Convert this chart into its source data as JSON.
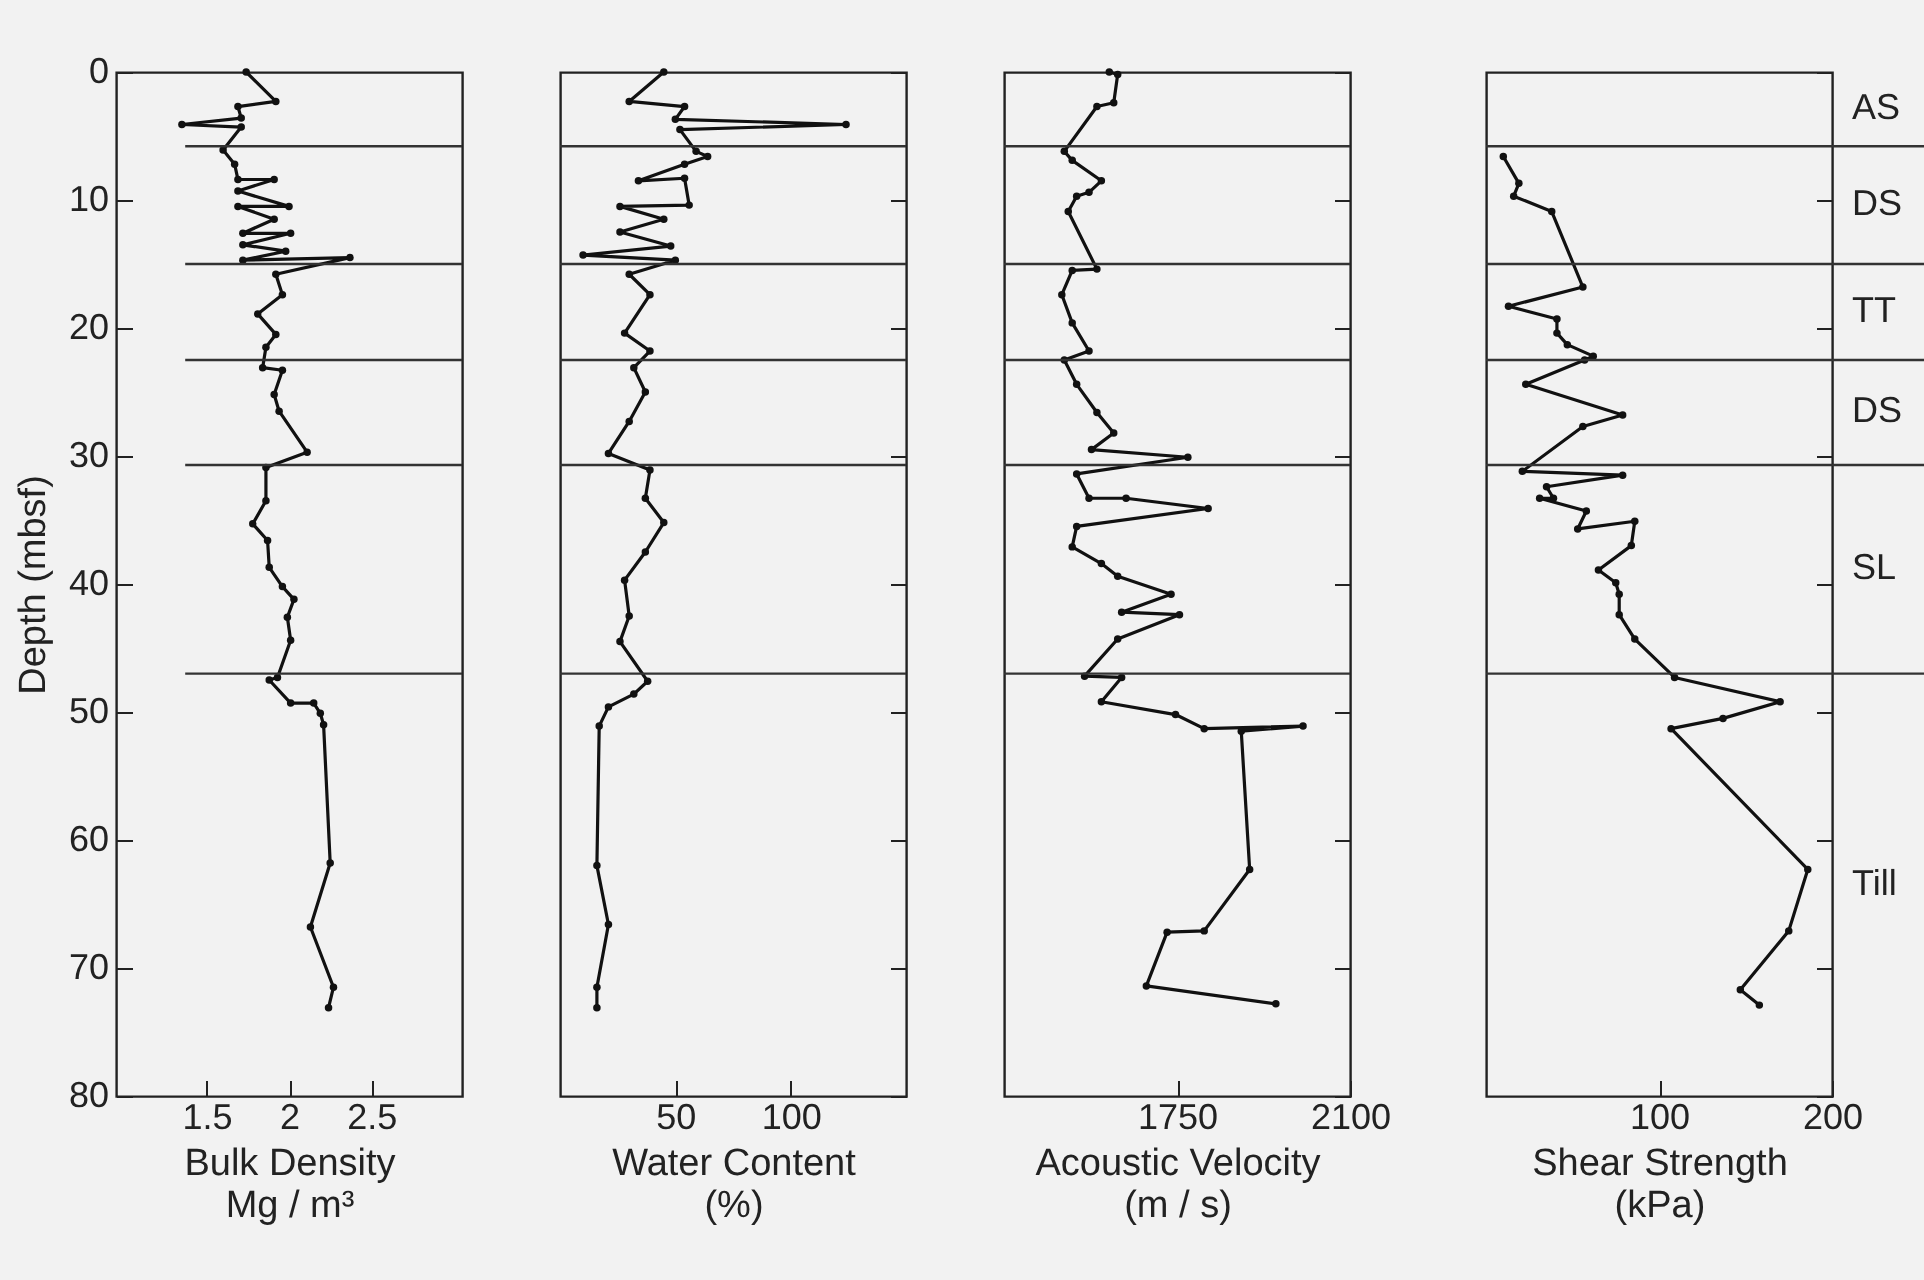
{
  "chart_data": [
    {
      "type": "line",
      "xlabel": "Bulk Density\nMg / m³",
      "ylabel": "Depth (mbsf)",
      "xlim": [
        0.95,
        3.05
      ],
      "xticks": [
        1.5,
        2,
        2.5
      ],
      "ylim": [
        80,
        0
      ],
      "yticks": [
        0,
        10,
        20,
        30,
        40,
        50,
        60,
        70,
        80
      ],
      "marker": "circle",
      "series": [
        {
          "color": "#111111",
          "x": [
            1.74,
            1.92,
            1.69,
            1.71,
            1.35,
            1.71,
            1.6,
            1.67,
            1.69,
            1.91,
            1.69,
            2.0,
            1.69,
            1.91,
            1.72,
            2.01,
            1.72,
            1.98,
            1.72,
            2.37,
            1.92,
            1.96,
            1.81,
            1.92,
            1.86,
            1.84,
            1.96,
            1.91,
            1.94,
            2.11,
            1.86,
            1.86,
            1.78,
            1.87,
            1.88,
            1.96,
            2.03,
            1.99,
            2.01,
            1.93,
            1.88,
            2.01,
            2.15,
            2.19,
            2.21,
            2.25,
            2.13,
            2.27,
            2.24
          ],
          "values": [
            0,
            2.3,
            2.7,
            3.6,
            4.1,
            4.3,
            6.1,
            7.2,
            8.4,
            8.4,
            9.3,
            10.5,
            10.5,
            11.5,
            12.6,
            12.6,
            13.5,
            14.0,
            14.7,
            14.5,
            15.8,
            17.4,
            18.9,
            20.5,
            21.5,
            23.1,
            23.3,
            25.2,
            26.5,
            29.7,
            30.9,
            33.5,
            35.3,
            36.6,
            38.7,
            40.2,
            41.2,
            42.6,
            44.4,
            47.3,
            47.5,
            49.3,
            49.3,
            50.1,
            51.0,
            61.8,
            66.8,
            71.5,
            73.1
          ]
        }
      ],
      "ref_lines": [
        {
          "axis": "y",
          "value": 5.8
        },
        {
          "axis": "y",
          "value": 15
        },
        {
          "axis": "y",
          "value": 22.5
        },
        {
          "axis": "y",
          "value": 30.7
        },
        {
          "axis": "y",
          "value": 47
        }
      ]
    },
    {
      "type": "line",
      "xlabel": "Water Content\n(%)",
      "xlim": [
        0,
        150
      ],
      "xticks": [
        50,
        100
      ],
      "ylim": [
        80,
        0
      ],
      "yticks": [
        0,
        10,
        20,
        30,
        40,
        50,
        60,
        70,
        80
      ],
      "tick_labels": "x",
      "marker": "circle",
      "series": [
        {
          "color": "#111111",
          "x": [
            45,
            30,
            54,
            50,
            124,
            52,
            59,
            64,
            54,
            34,
            54,
            56,
            26,
            45,
            26,
            48,
            10,
            50,
            30,
            39,
            28,
            39,
            32,
            37,
            30,
            21,
            39,
            37,
            45,
            37,
            28,
            30,
            26,
            38,
            32,
            21,
            17,
            16,
            21,
            16,
            16
          ],
          "values": [
            0,
            2.3,
            2.7,
            3.7,
            4.1,
            4.5,
            6.2,
            6.6,
            7.2,
            8.5,
            8.3,
            10.4,
            10.5,
            11.5,
            12.5,
            13.6,
            14.3,
            14.7,
            15.8,
            17.4,
            20.4,
            21.8,
            23.1,
            25.0,
            27.3,
            29.8,
            31.1,
            33.3,
            35.2,
            37.5,
            39.7,
            42.5,
            44.5,
            47.6,
            48.6,
            49.6,
            51.1,
            62.0,
            66.6,
            71.5,
            73.1
          ]
        }
      ],
      "ref_lines": [
        {
          "axis": "y",
          "value": 5.8
        },
        {
          "axis": "y",
          "value": 15
        },
        {
          "axis": "y",
          "value": 22.5
        },
        {
          "axis": "y",
          "value": 30.7
        },
        {
          "axis": "y",
          "value": 47
        }
      ]
    },
    {
      "type": "line",
      "xlabel": "Acoustic Velocity\n(m / s)",
      "xlim": [
        1400,
        2100
      ],
      "xticks": [
        1750,
        2100
      ],
      "ylim": [
        80,
        0
      ],
      "yticks": [
        0,
        10,
        20,
        30,
        40,
        50,
        60,
        70,
        80
      ],
      "tick_labels": "x",
      "marker": "circle",
      "series": [
        {
          "color": "#111111",
          "x": [
            1613,
            1630,
            1622,
            1588,
            1522,
            1538,
            1597,
            1572,
            1547,
            1530,
            1588,
            1538,
            1517,
            1538,
            1572,
            1522,
            1547,
            1588,
            1622,
            1577,
            1772,
            1547,
            1572,
            1647,
            1813,
            1547,
            1538,
            1597,
            1630,
            1738,
            1638,
            1755,
            1630,
            1563,
            1638,
            1597,
            1747,
            1805,
            2005,
            1880,
            1897,
            1805,
            1730,
            1688,
            1950
          ],
          "values": [
            0,
            0.2,
            2.4,
            2.7,
            6.2,
            6.9,
            8.5,
            9.4,
            9.7,
            10.9,
            15.4,
            15.5,
            17.4,
            19.6,
            21.8,
            22.5,
            24.4,
            26.6,
            28.2,
            29.5,
            30.1,
            31.4,
            33.3,
            33.3,
            34.1,
            35.5,
            37.1,
            38.4,
            39.4,
            40.8,
            42.2,
            42.4,
            44.3,
            47.2,
            47.3,
            49.2,
            50.2,
            51.3,
            51.1,
            51.5,
            62.3,
            67.1,
            67.2,
            71.4,
            72.8
          ]
        }
      ],
      "ref_lines": [
        {
          "axis": "y",
          "value": 5.8
        },
        {
          "axis": "y",
          "value": 15
        },
        {
          "axis": "y",
          "value": 22.5
        },
        {
          "axis": "y",
          "value": 30.7
        },
        {
          "axis": "y",
          "value": 47
        }
      ]
    },
    {
      "type": "line",
      "xlabel": "Shear Strength\n(kPa)",
      "xlim": [
        0,
        200
      ],
      "xticks": [
        100,
        200
      ],
      "ylim": [
        80,
        0
      ],
      "yticks": [
        0,
        10,
        20,
        30,
        40,
        50,
        60,
        70,
        80
      ],
      "tick_labels": "x",
      "marker": "circle",
      "series": [
        {
          "color": "#111111",
          "x": [
            10,
            19,
            16,
            38,
            56,
            13,
            41,
            41,
            47,
            62,
            57,
            23,
            79,
            56,
            21,
            79,
            35,
            39,
            31,
            58,
            53,
            86,
            84,
            65,
            75,
            77,
            77,
            86,
            109,
            170,
            137,
            107,
            186,
            175,
            147,
            158
          ],
          "values": [
            6.6,
            8.7,
            9.7,
            10.9,
            16.8,
            18.3,
            19.3,
            20.4,
            21.3,
            22.2,
            22.5,
            24.4,
            26.8,
            27.7,
            31.2,
            31.5,
            32.4,
            33.3,
            33.3,
            34.3,
            35.7,
            35.1,
            37.0,
            38.9,
            39.9,
            40.8,
            42.4,
            44.3,
            47.3,
            49.2,
            50.5,
            51.3,
            62.3,
            67.1,
            71.7,
            72.9
          ]
        }
      ],
      "ref_lines": [
        {
          "axis": "y",
          "value": 5.8
        },
        {
          "axis": "y",
          "value": 15
        },
        {
          "axis": "y",
          "value": 22.5
        },
        {
          "axis": "y",
          "value": 30.7
        },
        {
          "axis": "y",
          "value": 47
        }
      ],
      "annotations": [
        "AS",
        "DS",
        "TT",
        "DS",
        "SL",
        "Till"
      ]
    }
  ]
}
